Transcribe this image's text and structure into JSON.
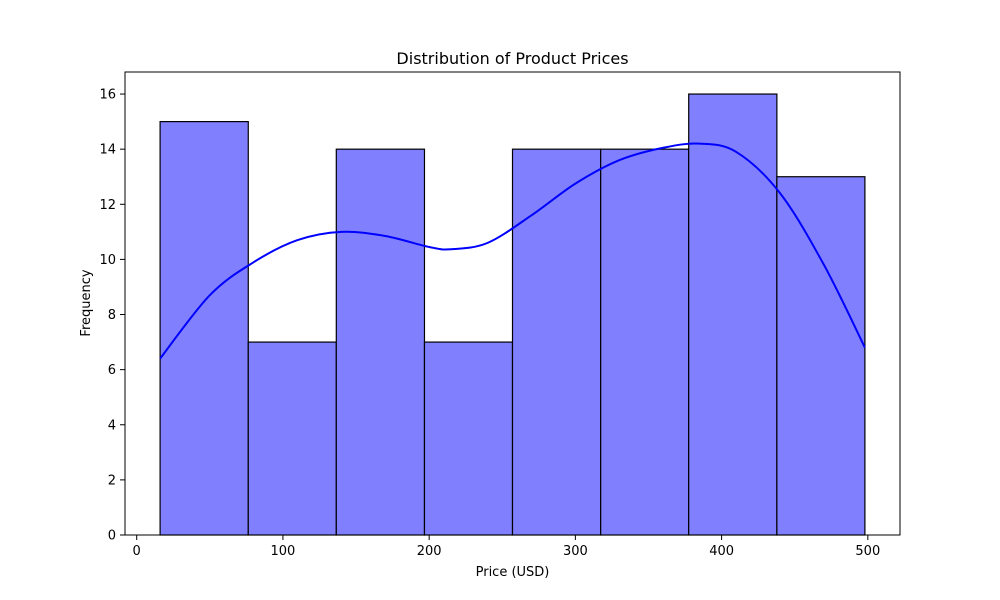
{
  "chart_data": {
    "type": "bar",
    "title": "Distribution of Product Prices",
    "xlabel": "Price (USD)",
    "ylabel": "Frequency",
    "bin_edges": [
      16,
      76.3,
      136.5,
      196.8,
      257,
      317.3,
      377.5,
      437.8,
      498
    ],
    "values": [
      15,
      7,
      14,
      7,
      14,
      14,
      16,
      13
    ],
    "xlim": [
      -8,
      522
    ],
    "ylim": [
      0,
      16.8
    ],
    "xticks": [
      0,
      100,
      200,
      300,
      400,
      500
    ],
    "yticks": [
      0,
      2,
      4,
      6,
      8,
      10,
      12,
      14,
      16
    ],
    "kde_curve": {
      "x": [
        16,
        50,
        80,
        110,
        140,
        170,
        200,
        215,
        240,
        270,
        300,
        330,
        360,
        385,
        410,
        440,
        470,
        498
      ],
      "y": [
        6.4,
        8.7,
        9.9,
        10.7,
        11.0,
        10.85,
        10.45,
        10.37,
        10.6,
        11.6,
        12.75,
        13.6,
        14.05,
        14.2,
        13.9,
        12.4,
        9.8,
        6.8
      ]
    },
    "grid": false,
    "colors": {
      "bar_fill": "#8080ff",
      "bar_edge": "#000000",
      "kde_line": "#0000ff"
    }
  }
}
